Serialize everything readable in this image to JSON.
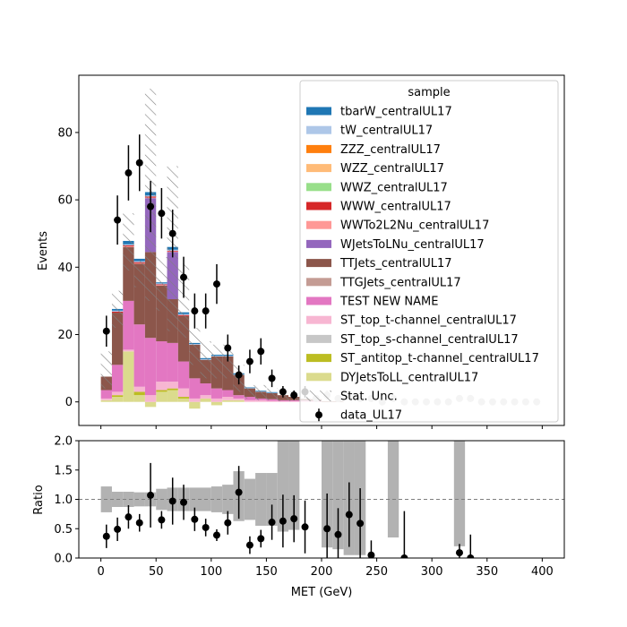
{
  "chart_data": [
    {
      "type": "stacked-histogram",
      "ylabel": "Events",
      "ylim": [
        -7,
        97
      ],
      "yticks": [
        0,
        20,
        40,
        60,
        80
      ],
      "grid": false,
      "legend": {
        "title": "sample",
        "placement": "top-right"
      },
      "bins": {
        "start": 0,
        "width": 10,
        "count": 40
      },
      "series": [
        {
          "name": "DYJetsToLL_centralUL17",
          "color": "#dbdb8d",
          "values": [
            0.5,
            1.5,
            15,
            2,
            -1.5,
            3,
            3.5,
            1,
            -2,
            1,
            -1,
            0.5,
            0.5,
            0,
            0,
            0,
            0,
            0,
            0,
            0,
            0,
            0,
            0,
            0,
            0,
            0,
            0,
            0,
            0,
            0,
            0,
            0,
            0,
            0,
            0,
            0,
            0,
            0,
            0,
            0
          ]
        },
        {
          "name": "ST_antitop_t-channel_centralUL17",
          "color": "#bcbd22",
          "values": [
            0,
            0.5,
            0,
            1,
            0,
            0.5,
            0.5,
            0.5,
            0,
            0,
            0,
            0,
            0,
            0,
            0,
            0,
            0,
            0,
            0,
            0,
            0,
            0,
            0,
            0,
            0,
            0,
            0,
            0,
            0,
            0,
            0,
            0,
            0,
            0,
            0,
            0,
            0,
            0,
            0,
            0
          ]
        },
        {
          "name": "ST_top_s-channel_centralUL17",
          "color": "#c7c7c7",
          "values": [
            0,
            0,
            0,
            0,
            0,
            0,
            0,
            0,
            0,
            0,
            0,
            0,
            0,
            0,
            0,
            0,
            0,
            0,
            0,
            0,
            0,
            0,
            0,
            0,
            0,
            0,
            0,
            0,
            0,
            0,
            0,
            0,
            0,
            0,
            0,
            0,
            0,
            0,
            0,
            0
          ]
        },
        {
          "name": "ST_top_t-channel_centralUL17",
          "color": "#f7b6d2",
          "values": [
            0.5,
            1,
            0.5,
            1.5,
            2,
            2.5,
            2,
            2.5,
            1,
            1,
            1,
            1,
            0.5,
            0.5,
            0.5,
            0.3,
            0.2,
            0.2,
            0.2,
            0.1,
            0,
            0,
            0,
            0,
            0,
            0,
            0,
            0,
            0,
            0,
            0,
            0,
            0,
            0,
            0,
            0,
            0,
            0,
            0,
            0
          ]
        },
        {
          "name": "TEST NEW NAME",
          "color": "#e377c2",
          "values": [
            2.5,
            8,
            14.5,
            18.5,
            17,
            12,
            11.5,
            8,
            6,
            3.5,
            3,
            2,
            1,
            1,
            0.5,
            0.5,
            0.3,
            0.3,
            0.2,
            0.2,
            0,
            0,
            0,
            0,
            0,
            0,
            0,
            0,
            0,
            0,
            0,
            0,
            0,
            0,
            0,
            0,
            0,
            0,
            0,
            0
          ]
        },
        {
          "name": "TTGJets_centralUL17",
          "color": "#c49c94",
          "values": [
            0,
            0,
            0,
            0,
            0,
            0,
            0,
            0,
            0,
            0,
            0,
            0,
            0,
            0,
            0,
            0,
            0,
            0,
            0,
            0,
            0,
            0,
            0,
            0,
            0,
            0,
            0,
            0,
            0,
            0,
            0,
            0,
            0,
            0,
            0,
            0,
            0,
            0,
            0,
            0
          ]
        },
        {
          "name": "TTJets_centralUL17",
          "color": "#8c564b",
          "values": [
            4,
            15.5,
            16,
            18,
            25.5,
            16.5,
            13,
            13.5,
            10,
            7,
            9.5,
            10,
            6,
            2.5,
            2,
            1.8,
            1.5,
            1,
            0.5,
            0.5,
            0.2,
            0.2,
            0,
            0,
            0,
            0,
            0,
            0,
            0,
            0,
            0,
            0,
            0,
            0,
            0,
            0,
            0,
            0,
            0,
            0
          ]
        },
        {
          "name": "WJetsToLNu_centralUL17",
          "color": "#9467bd",
          "values": [
            0,
            0,
            0,
            0,
            16,
            0,
            14,
            0,
            0,
            0,
            0,
            0,
            0,
            0,
            0,
            0,
            0,
            0,
            0,
            0,
            0,
            0,
            0,
            0,
            0,
            0,
            0,
            0,
            0,
            0,
            0,
            0,
            0,
            0,
            0,
            0,
            0,
            0,
            0,
            0
          ]
        },
        {
          "name": "WWTo2L2Nu_centralUL17",
          "color": "#ff9896",
          "values": [
            0,
            0,
            0.2,
            0.2,
            0.2,
            0.2,
            0.2,
            0,
            0,
            0,
            0,
            0,
            0,
            0,
            0,
            0,
            0,
            0,
            0,
            0,
            0,
            0,
            0,
            0,
            0,
            0,
            0,
            0,
            0,
            0,
            0,
            0,
            0,
            0,
            0,
            0,
            0,
            0,
            0,
            0
          ]
        },
        {
          "name": "WWW_centralUL17",
          "color": "#d62728",
          "values": [
            0,
            0.3,
            0.3,
            0.3,
            0.3,
            0.2,
            0.2,
            0.3,
            0,
            0,
            0,
            0,
            0,
            0,
            0,
            0,
            0,
            0,
            0,
            0,
            0,
            0,
            0,
            0,
            0,
            0,
            0,
            0,
            0,
            0,
            0,
            0,
            0,
            0,
            0,
            0,
            0,
            0,
            0,
            0
          ]
        },
        {
          "name": "WWZ_centralUL17",
          "color": "#98df8a",
          "values": [
            0,
            0,
            0,
            0,
            0,
            0,
            0,
            0,
            0,
            0,
            0,
            0,
            0,
            0,
            0,
            0,
            0,
            0,
            0,
            0,
            0,
            0,
            0,
            0,
            0,
            0,
            0,
            0,
            0,
            0,
            0,
            0,
            0,
            0,
            0,
            0,
            0,
            0,
            0,
            0
          ]
        },
        {
          "name": "WZZ_centralUL17",
          "color": "#ffbb78",
          "values": [
            0,
            0,
            0,
            0,
            0,
            0,
            0,
            0,
            0,
            0,
            0,
            0,
            0,
            0,
            0,
            0,
            0,
            0,
            0,
            0,
            0,
            0,
            0,
            0,
            0,
            0,
            0,
            0,
            0,
            0,
            0,
            0,
            0,
            0,
            0,
            0,
            0,
            0,
            0,
            0
          ]
        },
        {
          "name": "ZZZ_centralUL17",
          "color": "#ff7f0e",
          "values": [
            0,
            0,
            0,
            0,
            0,
            0,
            0,
            0,
            0,
            0,
            0,
            0,
            0,
            0,
            0,
            0,
            0,
            0,
            0,
            0,
            0,
            0,
            0,
            0,
            0,
            0,
            0,
            0,
            0,
            0,
            0,
            0,
            0,
            0,
            0,
            0,
            0,
            0,
            0,
            0
          ]
        },
        {
          "name": "tW_centralUL17",
          "color": "#aec7e8",
          "values": [
            0,
            0.3,
            0.3,
            0.3,
            0.3,
            0.3,
            0.3,
            0.3,
            0.2,
            0.2,
            0.2,
            0.2,
            0.2,
            0.1,
            0.1,
            0.1,
            0,
            0,
            0,
            0,
            0,
            0,
            0,
            0,
            0,
            0,
            0,
            0,
            0,
            0,
            0,
            0,
            0,
            0,
            0,
            0,
            0,
            0,
            0,
            0
          ]
        },
        {
          "name": "tbarW_centralUL17",
          "color": "#1f77b4",
          "values": [
            0,
            0.5,
            1,
            0.7,
            1,
            0.3,
            0.8,
            0.5,
            0.3,
            0.3,
            0.3,
            0.3,
            0.3,
            0.2,
            0.2,
            0.2,
            0,
            0,
            0,
            0,
            0,
            0,
            0,
            0,
            0,
            0,
            0,
            0,
            0,
            0,
            0,
            0,
            0,
            0,
            0,
            0,
            0,
            0,
            0,
            0
          ]
        }
      ],
      "stat_unc": {
        "name": "Stat. Unc.",
        "low": [
          4,
          22,
          39,
          34,
          30,
          27,
          21,
          19,
          11,
          7,
          7,
          7,
          3,
          1,
          0.5,
          0.5,
          0.2,
          0.2,
          0.2,
          0.2,
          0,
          0,
          0,
          0,
          0,
          0,
          0,
          0,
          0,
          0,
          0,
          0,
          0,
          0,
          0,
          0,
          0,
          0,
          0,
          0
        ],
        "high": [
          15,
          33,
          56,
          42,
          93,
          43,
          70,
          41,
          22,
          18,
          17,
          17,
          11,
          5,
          5,
          4,
          3.5,
          3,
          2,
          1.5,
          0.5,
          0.5,
          0.3,
          0.3,
          0,
          0,
          0,
          0,
          0,
          0,
          0,
          0,
          0,
          0,
          0,
          0,
          0,
          0,
          0,
          0
        ]
      },
      "data": {
        "name": "data_UL17",
        "color": "#000000",
        "x": [
          5,
          15,
          25,
          35,
          45,
          55,
          65,
          75,
          85,
          95,
          105,
          115,
          125,
          135,
          145,
          155,
          165,
          175,
          185,
          195,
          205,
          215,
          225,
          235,
          245,
          255,
          265,
          275,
          285,
          295,
          305,
          315,
          325,
          335,
          345,
          355,
          365,
          375,
          385,
          395
        ],
        "y": [
          21,
          54,
          68,
          71,
          58,
          56,
          50,
          37,
          27,
          27,
          35,
          16,
          8,
          12,
          15,
          7,
          3,
          2,
          3,
          1,
          2,
          1,
          2,
          1,
          1,
          0,
          1,
          0,
          0,
          0,
          0,
          0,
          1,
          1,
          0,
          0,
          0,
          0,
          0,
          0
        ],
        "yerr": [
          4.6,
          7.3,
          8.2,
          8.4,
          7.6,
          7.5,
          7.1,
          6.1,
          5.2,
          5.2,
          5.9,
          4,
          2.8,
          3.5,
          3.9,
          2.6,
          1.7,
          1.4,
          1.7,
          1,
          1.4,
          1,
          1.4,
          1,
          1,
          0,
          1,
          0,
          0,
          0,
          0,
          0,
          1,
          1,
          0,
          0,
          0,
          0,
          0,
          0
        ]
      }
    },
    {
      "type": "ratio",
      "xlabel": "MET (GeV)",
      "ylabel": "Ratio",
      "xlim": [
        -20,
        420
      ],
      "ylim": [
        0,
        2
      ],
      "xticks": [
        0,
        50,
        100,
        150,
        200,
        250,
        300,
        350,
        400
      ],
      "yticks": [
        0.0,
        0.5,
        1.0,
        1.5,
        2.0
      ],
      "yticklabels": [
        "0.0",
        "0.5",
        "1.0",
        "1.5",
        "2.0"
      ],
      "reference_line": 1.0,
      "band_color": "#b2b2b2",
      "band_low": [
        0.78,
        0.87,
        0.87,
        0.88,
        0.88,
        0.82,
        0.8,
        0.8,
        0.8,
        0.8,
        0.78,
        0.75,
        0.63,
        0.65,
        0.55,
        0.55,
        0.45,
        0.48,
        0,
        0,
        0.18,
        0.15,
        0.05,
        0.05,
        0,
        0,
        0.35,
        0,
        0,
        0,
        0,
        0,
        0.2,
        0,
        0,
        0,
        0,
        0,
        0,
        0
      ],
      "band_high": [
        1.22,
        1.13,
        1.13,
        1.12,
        1.12,
        1.18,
        1.2,
        1.2,
        1.2,
        1.2,
        1.22,
        1.25,
        1.48,
        1.35,
        1.45,
        1.45,
        2,
        2,
        0,
        0,
        2,
        2,
        2,
        2,
        0,
        0,
        2,
        0,
        0,
        0,
        0,
        0,
        2,
        0,
        0,
        0,
        0,
        0,
        0,
        0
      ],
      "points": {
        "x": [
          5,
          15,
          25,
          35,
          45,
          55,
          65,
          75,
          85,
          95,
          105,
          115,
          125,
          135,
          145,
          155,
          165,
          175,
          185,
          205,
          215,
          225,
          235,
          245,
          275,
          325,
          335
        ],
        "y": [
          0.37,
          0.49,
          0.7,
          0.6,
          1.07,
          0.65,
          0.97,
          0.95,
          0.66,
          0.52,
          0.39,
          0.6,
          1.12,
          0.22,
          0.33,
          0.61,
          0.63,
          0.67,
          0.53,
          0.5,
          0.4,
          0.74,
          0.59,
          0.05,
          0,
          0.09,
          0
        ],
        "yerr": [
          0.2,
          0.2,
          0.2,
          0.15,
          0.55,
          0.15,
          0.4,
          0.3,
          0.2,
          0.15,
          0.1,
          0.2,
          0.45,
          0.15,
          0.15,
          0.3,
          0.45,
          0.4,
          0.45,
          0.6,
          0.45,
          0.55,
          0.6,
          0.25,
          0.8,
          0.15,
          0.4
        ]
      }
    }
  ]
}
